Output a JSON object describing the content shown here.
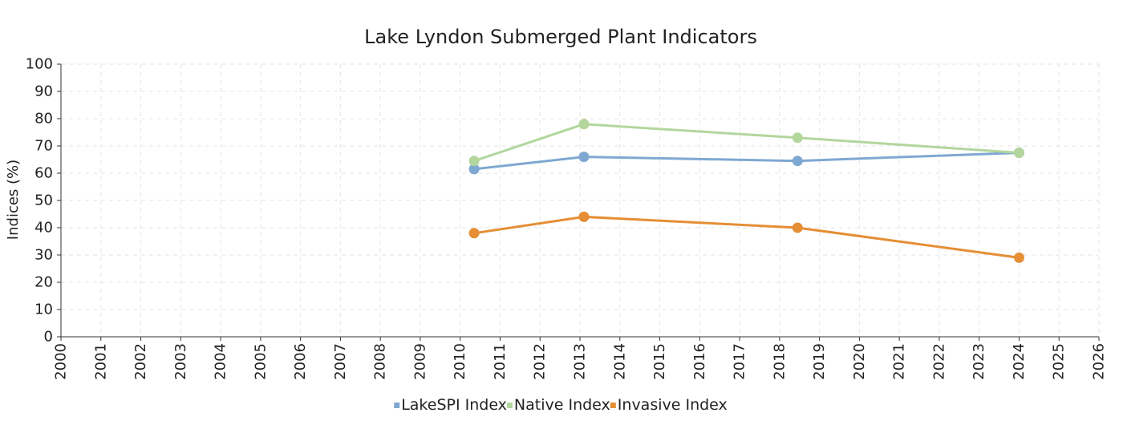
{
  "chart_data": {
    "type": "line",
    "title": "Lake Lyndon Submerged Plant Indicators",
    "xlabel": "",
    "ylabel": "Indices (%)",
    "xlim": [
      2000,
      2026
    ],
    "ylim": [
      0,
      100
    ],
    "xticks": [
      "2000",
      "2001",
      "2002",
      "2003",
      "2004",
      "2005",
      "2006",
      "2007",
      "2008",
      "2009",
      "2010",
      "2011",
      "2012",
      "2013",
      "2014",
      "2015",
      "2016",
      "2017",
      "2018",
      "2019",
      "2020",
      "2021",
      "2022",
      "2023",
      "2024",
      "2025",
      "2026"
    ],
    "yticks": [
      "0",
      "10",
      "20",
      "30",
      "40",
      "50",
      "60",
      "70",
      "80",
      "90",
      "100"
    ],
    "grid": true,
    "legend_position": "bottom",
    "series": [
      {
        "name": "LakeSPI Index",
        "color": "#7fa8d1",
        "x": [
          2010.35,
          2013.1,
          2018.45,
          2024.0
        ],
        "y": [
          61.5,
          66,
          64.5,
          67.5
        ]
      },
      {
        "name": "Native Index",
        "color": "#b3d69d",
        "x": [
          2010.35,
          2013.1,
          2018.45,
          2024.0
        ],
        "y": [
          64.5,
          78,
          73,
          67.5
        ]
      },
      {
        "name": "Invasive Index",
        "color": "#e58e35",
        "x": [
          2010.35,
          2013.1,
          2018.45,
          2024.0
        ],
        "y": [
          38,
          44,
          40,
          29
        ]
      }
    ]
  }
}
